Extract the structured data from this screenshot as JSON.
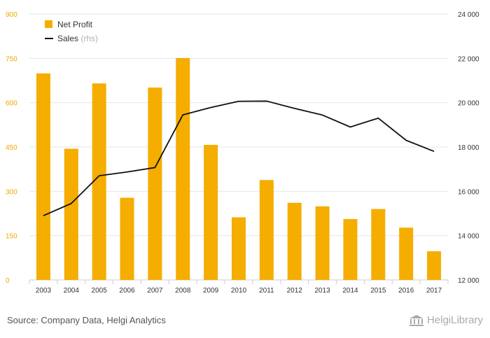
{
  "chart_data": {
    "type": "bar+line",
    "categories": [
      "2003",
      "2004",
      "2005",
      "2006",
      "2007",
      "2008",
      "2009",
      "2010",
      "2011",
      "2012",
      "2013",
      "2014",
      "2015",
      "2016",
      "2017"
    ],
    "series": [
      {
        "name": "Net Profit",
        "type": "bar",
        "axis": "left",
        "color": "#f5ad00",
        "values": [
          699,
          444,
          665,
          278,
          651,
          751,
          457,
          212,
          338,
          261,
          249,
          206,
          240,
          177,
          97
        ]
      },
      {
        "name": "Sales",
        "type": "line",
        "axis": "right",
        "color": "#111111",
        "values": [
          14900,
          15450,
          16700,
          16870,
          17070,
          19450,
          19780,
          20060,
          20070,
          19740,
          19440,
          18900,
          19300,
          18300,
          17800
        ]
      }
    ],
    "legend": [
      {
        "label": "Net Profit",
        "suffix": ""
      },
      {
        "label": "Sales",
        "suffix": "(rhs)"
      }
    ],
    "left_axis": {
      "ticks": [
        "0",
        "150",
        "300",
        "450",
        "600",
        "750",
        "900"
      ],
      "ylim": [
        0,
        900
      ]
    },
    "right_axis": {
      "ticks": [
        "12 000",
        "14 000",
        "16 000",
        "18 000",
        "20 000",
        "22 000",
        "24 000"
      ],
      "ylim": [
        12000,
        24000
      ]
    },
    "grid": true,
    "legend_position": "top-left"
  },
  "footer": {
    "source": "Source: Company Data, Helgi Analytics",
    "logo_text": "HelgiLibrary"
  }
}
